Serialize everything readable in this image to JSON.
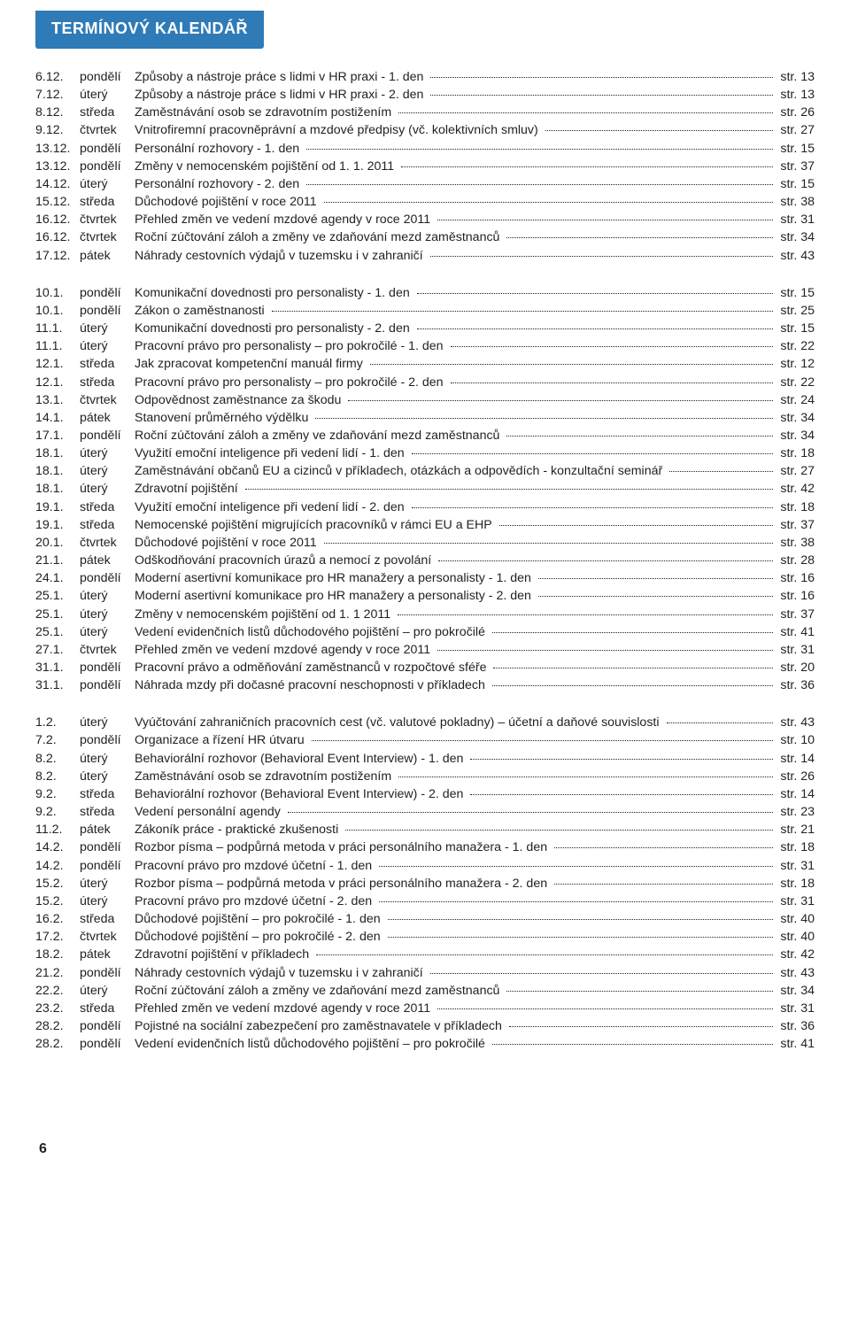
{
  "title": "TERMÍNOVÝ KALENDÁŘ",
  "page_number": "6",
  "page_label_prefix": "str. ",
  "blocks": [
    [
      {
        "date": "6.12.",
        "dow": "pondělí",
        "topic": "Způsoby a nástroje práce s lidmi v HR praxi - 1. den",
        "pg": "13"
      },
      {
        "date": "7.12.",
        "dow": "úterý",
        "topic": "Způsoby a nástroje práce s lidmi v HR praxi - 2. den",
        "pg": "13"
      },
      {
        "date": "8.12.",
        "dow": "středa",
        "topic": "Zaměstnávání osob se zdravotním postižením",
        "pg": "26"
      },
      {
        "date": "9.12.",
        "dow": "čtvrtek",
        "topic": "Vnitrofiremní pracovněprávní a mzdové předpisy (vč. kolektivních smluv)",
        "pg": "27"
      },
      {
        "date": "13.12.",
        "dow": "pondělí",
        "topic": "Personální rozhovory - 1. den",
        "pg": "15"
      },
      {
        "date": "13.12.",
        "dow": "pondělí",
        "topic": "Změny v nemocenském pojištění od 1. 1. 2011",
        "pg": "37"
      },
      {
        "date": "14.12.",
        "dow": "úterý",
        "topic": "Personální rozhovory - 2. den",
        "pg": "15"
      },
      {
        "date": "15.12.",
        "dow": "středa",
        "topic": "Důchodové pojištění v roce 2011",
        "pg": "38"
      },
      {
        "date": "16.12.",
        "dow": "čtvrtek",
        "topic": "Přehled změn ve vedení mzdové agendy v roce 2011",
        "pg": "31"
      },
      {
        "date": "16.12.",
        "dow": "čtvrtek",
        "topic": "Roční zúčtování záloh a změny ve zdaňování mezd zaměstnanců",
        "pg": "34"
      },
      {
        "date": "17.12.",
        "dow": "pátek",
        "topic": "Náhrady cestovních výdajů v tuzemsku i v zahraničí",
        "pg": "43"
      }
    ],
    [
      {
        "date": "10.1.",
        "dow": "pondělí",
        "topic": "Komunikační dovednosti pro personalisty - 1. den",
        "pg": "15"
      },
      {
        "date": "10.1.",
        "dow": "pondělí",
        "topic": "Zákon o zaměstnanosti",
        "pg": "25"
      },
      {
        "date": "11.1.",
        "dow": "úterý",
        "topic": "Komunikační dovednosti pro personalisty - 2. den",
        "pg": "15"
      },
      {
        "date": "11.1.",
        "dow": "úterý",
        "topic": "Pracovní právo pro personalisty – pro pokročilé - 1. den",
        "pg": "22"
      },
      {
        "date": "12.1.",
        "dow": "středa",
        "topic": "Jak zpracovat kompetenční manuál firmy",
        "pg": "12"
      },
      {
        "date": "12.1.",
        "dow": "středa",
        "topic": "Pracovní právo pro personalisty – pro pokročilé - 2. den",
        "pg": "22"
      },
      {
        "date": "13.1.",
        "dow": "čtvrtek",
        "topic": "Odpovědnost zaměstnance za škodu",
        "pg": "24"
      },
      {
        "date": "14.1.",
        "dow": "pátek",
        "topic": "Stanovení průměrného výdělku",
        "pg": "34"
      },
      {
        "date": "17.1.",
        "dow": "pondělí",
        "topic": "Roční zúčtování záloh a změny ve zdaňování mezd zaměstnanců",
        "pg": "34"
      },
      {
        "date": "18.1.",
        "dow": "úterý",
        "topic": "Využití emoční inteligence při vedení lidí - 1. den",
        "pg": "18"
      },
      {
        "date": "18.1.",
        "dow": "úterý",
        "topic": "Zaměstnávání občanů EU a cizinců v příkladech, otázkách a odpovědích - konzultační seminář",
        "pg": "27"
      },
      {
        "date": "18.1.",
        "dow": "úterý",
        "topic": "Zdravotní pojištění",
        "pg": "42"
      },
      {
        "date": "19.1.",
        "dow": "středa",
        "topic": "Využití emoční inteligence při vedení lidí - 2. den",
        "pg": "18"
      },
      {
        "date": "19.1.",
        "dow": "středa",
        "topic": "Nemocenské pojištění migrujících pracovníků v rámci EU a EHP",
        "pg": "37"
      },
      {
        "date": "20.1.",
        "dow": "čtvrtek",
        "topic": "Důchodové pojištění v roce 2011",
        "pg": "38"
      },
      {
        "date": "21.1.",
        "dow": "pátek",
        "topic": "Odškodňování pracovních úrazů a nemocí z povolání",
        "pg": "28"
      },
      {
        "date": "24.1.",
        "dow": "pondělí",
        "topic": "Moderní asertivní komunikace pro HR manažery a personalisty - 1. den",
        "pg": "16"
      },
      {
        "date": "25.1.",
        "dow": "úterý",
        "topic": "Moderní asertivní komunikace pro HR manažery a personalisty - 2. den",
        "pg": "16"
      },
      {
        "date": "25.1.",
        "dow": "úterý",
        "topic": "Změny v nemocenském pojištění od 1. 1 2011",
        "pg": "37"
      },
      {
        "date": "25.1.",
        "dow": "úterý",
        "topic": "Vedení evidenčních listů důchodového pojištění – pro pokročilé",
        "pg": "41"
      },
      {
        "date": "27.1.",
        "dow": "čtvrtek",
        "topic": "Přehled změn ve vedení mzdové agendy v roce 2011",
        "pg": "31"
      },
      {
        "date": "31.1.",
        "dow": "pondělí",
        "topic": "Pracovní právo a odměňování zaměstnanců v rozpočtové sféře",
        "pg": "20"
      },
      {
        "date": "31.1.",
        "dow": "pondělí",
        "topic": "Náhrada mzdy při dočasné pracovní neschopnosti v příkladech",
        "pg": "36"
      }
    ],
    [
      {
        "date": "1.2.",
        "dow": "úterý",
        "topic": "Vyúčtování zahraničních pracovních cest (vč. valutové pokladny) – účetní a daňové souvislosti",
        "pg": "43"
      },
      {
        "date": "7.2.",
        "dow": "pondělí",
        "topic": "Organizace a řízení HR útvaru",
        "pg": "10"
      },
      {
        "date": "8.2.",
        "dow": "úterý",
        "topic": "Behaviorální rozhovor (Behavioral Event Interview) - 1. den",
        "pg": "14"
      },
      {
        "date": "8.2.",
        "dow": "úterý",
        "topic": "Zaměstnávání osob se zdravotním postižením",
        "pg": "26"
      },
      {
        "date": "9.2.",
        "dow": "středa",
        "topic": "Behaviorální rozhovor (Behavioral Event Interview) - 2. den",
        "pg": "14"
      },
      {
        "date": "9.2.",
        "dow": "středa",
        "topic": "Vedení personální agendy",
        "pg": "23"
      },
      {
        "date": "11.2.",
        "dow": "pátek",
        "topic": "Zákoník práce - praktické zkušenosti",
        "pg": "21"
      },
      {
        "date": "14.2.",
        "dow": "pondělí",
        "topic": "Rozbor písma – podpůrná metoda v práci personálního manažera - 1. den",
        "pg": "18"
      },
      {
        "date": "14.2.",
        "dow": "pondělí",
        "topic": "Pracovní právo pro mzdové účetní - 1. den",
        "pg": "31"
      },
      {
        "date": "15.2.",
        "dow": "úterý",
        "topic": "Rozbor písma – podpůrná metoda v práci personálního manažera - 2. den",
        "pg": "18"
      },
      {
        "date": "15.2.",
        "dow": "úterý",
        "topic": "Pracovní právo pro mzdové účetní - 2. den",
        "pg": "31"
      },
      {
        "date": "16.2.",
        "dow": "středa",
        "topic": "Důchodové pojištění – pro pokročilé - 1. den",
        "pg": "40"
      },
      {
        "date": "17.2.",
        "dow": "čtvrtek",
        "topic": "Důchodové pojištění – pro pokročilé - 2. den",
        "pg": "40"
      },
      {
        "date": "18.2.",
        "dow": "pátek",
        "topic": "Zdravotní pojištění v příkladech",
        "pg": "42"
      },
      {
        "date": "21.2.",
        "dow": "pondělí",
        "topic": "Náhrady cestovních výdajů v tuzemsku i v zahraničí",
        "pg": "43"
      },
      {
        "date": "22.2.",
        "dow": "úterý",
        "topic": "Roční zúčtování záloh a změny ve zdaňování mezd zaměstnanců",
        "pg": "34"
      },
      {
        "date": "23.2.",
        "dow": "středa",
        "topic": "Přehled změn ve vedení mzdové agendy v roce 2011",
        "pg": "31"
      },
      {
        "date": "28.2.",
        "dow": "pondělí",
        "topic": "Pojistné na sociální zabezpečení pro zaměstnavatele v příkladech",
        "pg": "36"
      },
      {
        "date": "28.2.",
        "dow": "pondělí",
        "topic": "Vedení evidenčních listů důchodového pojištění – pro pokročilé",
        "pg": "41"
      }
    ]
  ]
}
